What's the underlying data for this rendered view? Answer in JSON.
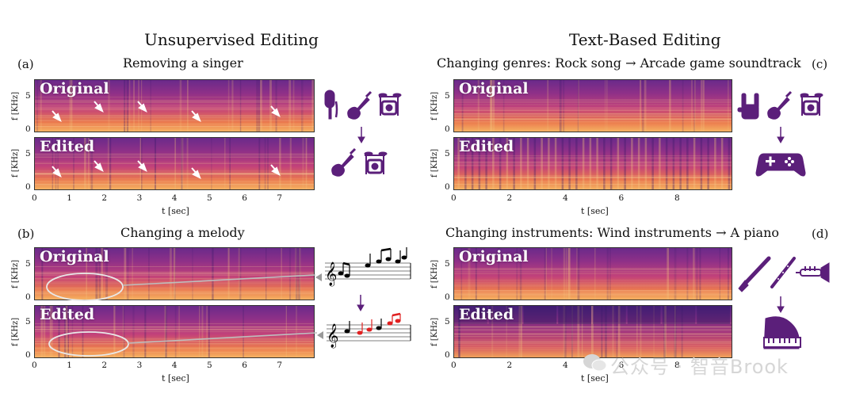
{
  "left": {
    "section_title": "Unsupervised Editing",
    "panel_a": {
      "letter": "(a)",
      "title": "Removing a singer"
    },
    "panel_b": {
      "letter": "(b)",
      "title": "Changing a melody"
    }
  },
  "right": {
    "section_title": "Text-Based Editing",
    "panel_c": {
      "letter": "(c)",
      "title": "Changing genres: Rock song → Arcade game soundtrack"
    },
    "panel_d": {
      "letter": "(d)",
      "title": "Changing instruments: Wind instruments → A piano"
    }
  },
  "spectrogram_labels": {
    "original": "Original",
    "edited": "Edited"
  },
  "axes": {
    "ylabel": "f [KHz]",
    "xlabel": "t [sec]",
    "y_ticks": [
      "0",
      "5"
    ],
    "x_ticks_left": [
      "0",
      "1",
      "2",
      "3",
      "4",
      "5",
      "6",
      "7"
    ],
    "x_ticks_right": [
      "0",
      "2",
      "4",
      "6",
      "8"
    ]
  },
  "watermark": "公众号 · 智音Brook",
  "colors": {
    "spec_dark": "#3a1a6e",
    "spec_mid": "#b8387a",
    "spec_bright": "#f4a15b",
    "icon": "#5b1f7a",
    "melody_edit": "#e02020"
  },
  "icons": [
    "microphone-icon",
    "guitar-icon",
    "drums-icon",
    "rock-hand-icon",
    "gamepad-icon",
    "clarinet-icon",
    "recorder-icon",
    "trumpet-icon",
    "piano-icon",
    "music-score-icon"
  ]
}
